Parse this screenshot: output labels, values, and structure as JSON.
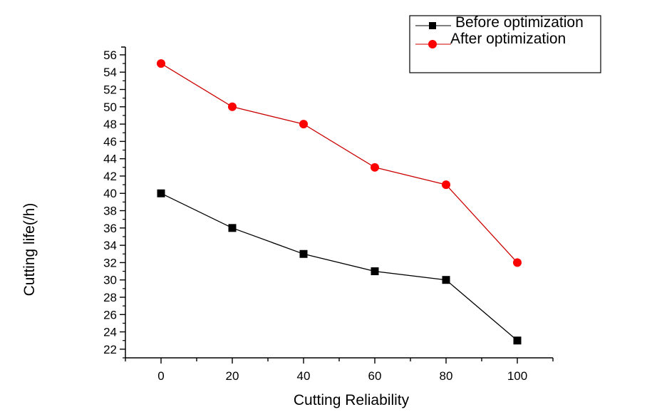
{
  "chart_data": {
    "type": "line",
    "title": "",
    "xlabel": "Cutting Reliability",
    "ylabel": "Cutting life(/h)",
    "x": [
      0,
      20,
      40,
      60,
      80,
      100
    ],
    "xlim": [
      -10,
      110
    ],
    "ylim": [
      21,
      56.9
    ],
    "xticks": [
      0,
      20,
      40,
      60,
      80,
      100
    ],
    "xtick_labels": [
      "0",
      "20",
      "40",
      "60",
      "80",
      "100"
    ],
    "yticks": [
      22,
      24,
      26,
      28,
      30,
      32,
      34,
      36,
      38,
      40,
      42,
      44,
      46,
      48,
      50,
      52,
      54,
      56
    ],
    "ytick_labels": [
      "22",
      "24",
      "26",
      "28",
      "30",
      "32",
      "34",
      "36",
      "38",
      "40",
      "42",
      "44",
      "46",
      "48",
      "50",
      "52",
      "54",
      "56"
    ],
    "grid": false,
    "legend_position": "top-right",
    "series": [
      {
        "name": "Before optimization",
        "color": "#000000",
        "marker": "square",
        "values": [
          40,
          36,
          33,
          31,
          30,
          23
        ]
      },
      {
        "name": "After optimization",
        "color": "#ff0000",
        "line_color": "#cc0000",
        "marker": "circle",
        "values": [
          55,
          50,
          48,
          43,
          41,
          32
        ]
      }
    ]
  }
}
